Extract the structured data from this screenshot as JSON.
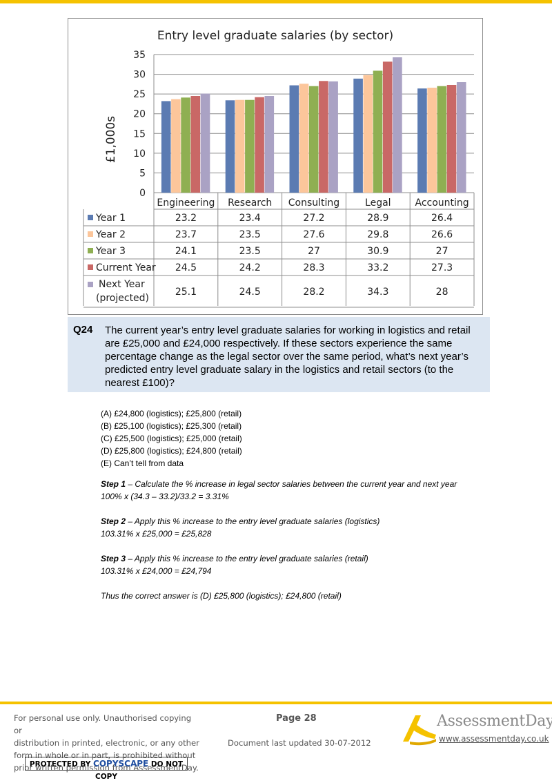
{
  "chart_data": {
    "type": "bar",
    "title": "Entry level graduate salaries (by sector)",
    "ylabel": "£1,000s",
    "xlabel": "",
    "ylim": [
      0,
      35
    ],
    "yticks": [
      0,
      5,
      10,
      15,
      20,
      25,
      30,
      35
    ],
    "grid": true,
    "legend": "data-table",
    "categories": [
      "Engineering",
      "Research",
      "Consulting",
      "Legal",
      "Accounting"
    ],
    "series": [
      {
        "name": "Year 1",
        "label_lines": [
          "Year 1"
        ],
        "color": "#5b7bb2",
        "values": [
          23.2,
          23.4,
          27.2,
          28.9,
          26.4
        ],
        "display": [
          "23.2",
          "23.4",
          "27.2",
          "28.9",
          "26.4"
        ]
      },
      {
        "name": "Year 2",
        "label_lines": [
          "Year 2"
        ],
        "color": "#fcc69b",
        "values": [
          23.7,
          23.5,
          27.6,
          29.8,
          26.6
        ],
        "display": [
          "23.7",
          "23.5",
          "27.6",
          "29.8",
          "26.6"
        ]
      },
      {
        "name": "Year 3",
        "label_lines": [
          "Year 3"
        ],
        "color": "#8faf52",
        "values": [
          24.1,
          23.5,
          27,
          30.9,
          27
        ],
        "display": [
          "24.1",
          "23.5",
          "27",
          "30.9",
          "27"
        ]
      },
      {
        "name": "Current Year",
        "label_lines": [
          "Current Year"
        ],
        "color": "#c96866",
        "values": [
          24.5,
          24.2,
          28.3,
          33.2,
          27.3
        ],
        "display": [
          "24.5",
          "24.2",
          "28.3",
          "33.2",
          "27.3"
        ]
      },
      {
        "name": "Next Year (projected)",
        "label_lines": [
          "Next Year",
          "(projected)"
        ],
        "color": "#aaa2c4",
        "values": [
          25.1,
          24.5,
          28.2,
          34.3,
          28
        ],
        "display": [
          "25.1",
          "24.5",
          "28.2",
          "34.3",
          "28"
        ]
      }
    ]
  },
  "question": {
    "number": "Q24",
    "text": "The current year’s entry level graduate salaries for working in logistics and retail are £25,000 and £24,000 respectively. If these sectors experience the same percentage change as the legal sector over the same period, what’s next year’s predicted entry level graduate salary in the logistics and retail sectors (to the nearest £100)?"
  },
  "options": [
    "(A) £24,800 (logistics); £25,800 (retail)",
    "(B) £25,100 (logistics); £25,300 (retail)",
    "(C) £25,500 (logistics); £25,000 (retail)",
    "(D) £25,800 (logistics); £24,800 (retail)",
    "(E) Can’t tell from data"
  ],
  "steps": [
    {
      "label": "Step 1",
      "text": " – Calculate the % increase in legal sector salaries between the current year and next year",
      "calc": "100% x (34.3 – 33.2)/33.2 = 3.31%"
    },
    {
      "label": "Step 2",
      "text": " – Apply this % increase to the entry level graduate salaries (logistics)",
      "calc": "103.31% x £25,000 = £25,828"
    },
    {
      "label": "Step 3",
      "text": " – Apply this % increase to the entry level graduate salaries (retail)",
      "calc": "103.31% x £24,000 = £24,794"
    }
  ],
  "conclusion": "Thus the correct answer is (D) £25,800 (logistics); £24,800 (retail)",
  "footer": {
    "notice_lines": [
      "For personal use only. Unauthorised copying or",
      "distribution in printed, electronic, or any other",
      "form in whole or in part, is prohibited without",
      "prior written permission from AssessmentDay."
    ],
    "copyscape_pre": "PROTECTED BY ",
    "copyscape_brand": "COPYSCAPE",
    "copyscape_post": " DO NOT COPY",
    "page": "Page 28",
    "updated": "Document last updated 30-07-2012",
    "brand_name": "AssessmentDay",
    "brand_url": "www.assessmentday.co.uk",
    "brand_color": "#f5c200"
  }
}
